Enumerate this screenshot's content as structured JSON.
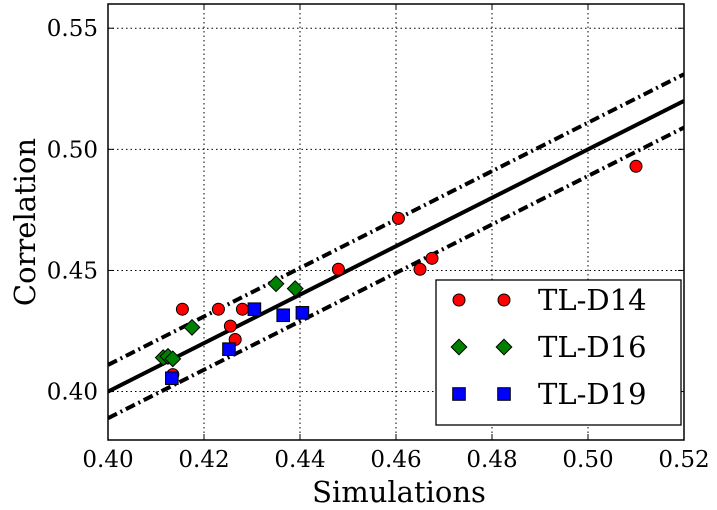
{
  "chart_data": {
    "type": "scatter",
    "title": "",
    "xlabel": "Simulations",
    "ylabel": "Correlation",
    "xlim": [
      0.4,
      0.52
    ],
    "ylim": [
      0.38,
      0.56
    ],
    "grid": true,
    "legend_position": "lower-right",
    "x_ticks": [
      "0.40",
      "0.42",
      "0.44",
      "0.46",
      "0.48",
      "0.50",
      "0.52"
    ],
    "y_ticks": [
      "0.40",
      "0.45",
      "0.50",
      "0.55"
    ],
    "series": [
      {
        "name": "TL-D14",
        "marker": "circle",
        "color": "#ff0000",
        "points": [
          [
            0.4135,
            0.407
          ],
          [
            0.4155,
            0.434
          ],
          [
            0.423,
            0.434
          ],
          [
            0.4255,
            0.427
          ],
          [
            0.4265,
            0.4215
          ],
          [
            0.428,
            0.434
          ],
          [
            0.448,
            0.4505
          ],
          [
            0.4605,
            0.4715
          ],
          [
            0.465,
            0.4505
          ],
          [
            0.4675,
            0.455
          ],
          [
            0.51,
            0.493
          ]
        ]
      },
      {
        "name": "TL-D16",
        "marker": "diamond",
        "color": "#008000",
        "points": [
          [
            0.4115,
            0.414
          ],
          [
            0.4125,
            0.4145
          ],
          [
            0.4135,
            0.4135
          ],
          [
            0.4175,
            0.4265
          ],
          [
            0.435,
            0.4445
          ],
          [
            0.439,
            0.4425
          ]
        ]
      },
      {
        "name": "TL-D19",
        "marker": "square",
        "color": "#0000ff",
        "points": [
          [
            0.4133,
            0.4055
          ],
          [
            0.4252,
            0.4175
          ],
          [
            0.4305,
            0.434
          ],
          [
            0.4365,
            0.4315
          ],
          [
            0.4405,
            0.4325
          ]
        ]
      }
    ],
    "fit_lines": [
      {
        "style": "solid",
        "x": [
          0.4,
          0.52
        ],
        "y": [
          0.4,
          0.52
        ]
      },
      {
        "style": "dash-dot",
        "x": [
          0.4,
          0.52
        ],
        "y": [
          0.411,
          0.531
        ]
      },
      {
        "style": "dash-dot",
        "x": [
          0.4,
          0.52
        ],
        "y": [
          0.389,
          0.509
        ]
      }
    ]
  }
}
